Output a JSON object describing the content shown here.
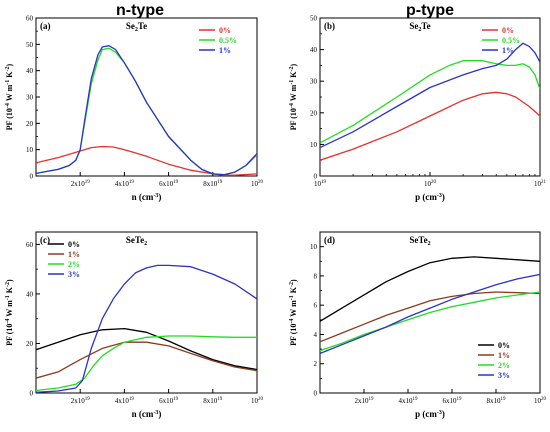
{
  "header": {
    "left": "n-type",
    "right": "p-type"
  },
  "colors": {
    "red": "#e8302a",
    "green": "#22dd22",
    "blue": "#2b34c4",
    "black": "#000000",
    "brown": "#8b3a1f"
  },
  "chart_data": [
    {
      "type": "line",
      "panel": "(a)",
      "title": "Se2Te",
      "title_main": "Se",
      "title_sub": "2",
      "title_tail": "Te",
      "xlabel": "n (cm-3)",
      "xlabel_main": "n (cm",
      "xlabel_sup": "-3",
      "xlabel_tail": ")",
      "ylabel": "PF (10-4 W m-1 K-2)",
      "ylim": [
        0,
        60
      ],
      "xlim": [
        0,
        1e+20
      ],
      "xscale": "linear",
      "xticks": [
        {
          "value": 2e+19,
          "label": "2x10",
          "exp": "19"
        },
        {
          "value": 4e+19,
          "label": "4x10",
          "exp": "19"
        },
        {
          "value": 6e+19,
          "label": "6x10",
          "exp": "19"
        },
        {
          "value": 8e+19,
          "label": "8x10",
          "exp": "19"
        },
        {
          "value": 1e+20,
          "label": "10",
          "exp": "20"
        }
      ],
      "yticks": [
        0,
        10,
        20,
        30,
        40,
        50,
        60
      ],
      "legend_position": "top-right",
      "series": [
        {
          "name": "0%",
          "color": "#e8302a",
          "x": [
            0,
            1e+19,
            2e+19,
            2.5e+19,
            3e+19,
            3.5e+19,
            4e+19,
            5e+19,
            6e+19,
            7e+19,
            8e+19,
            8.5e+19,
            9e+19,
            1e+20
          ],
          "y": [
            5,
            7,
            9.5,
            10.8,
            11.2,
            11,
            10,
            7.5,
            4.5,
            2.2,
            0.8,
            0.3,
            0.3,
            0.8
          ]
        },
        {
          "name": "0.5%",
          "color": "#22dd22",
          "x": [
            0,
            1e+19,
            1.5e+19,
            1.8e+19,
            2e+19,
            2.2e+19,
            2.5e+19,
            2.8e+19,
            3e+19,
            3.3e+19,
            3.6e+19,
            4e+19,
            4.5e+19,
            5e+19,
            6e+19,
            7e+19,
            7.5e+19,
            8e+19,
            8.5e+19,
            9e+19,
            9.5e+19,
            1e+20
          ],
          "y": [
            1,
            2.5,
            4,
            6,
            10,
            20,
            35,
            44,
            48,
            48.5,
            47,
            43,
            36,
            28,
            15,
            6,
            2.5,
            0.8,
            0.5,
            1.5,
            4,
            8
          ]
        },
        {
          "name": "1%",
          "color": "#2b34c4",
          "x": [
            0,
            1e+19,
            1.5e+19,
            1.8e+19,
            2e+19,
            2.2e+19,
            2.5e+19,
            2.8e+19,
            3e+19,
            3.3e+19,
            3.6e+19,
            4e+19,
            4.5e+19,
            5e+19,
            6e+19,
            7e+19,
            7.5e+19,
            8e+19,
            8.5e+19,
            9e+19,
            9.5e+19,
            1e+20
          ],
          "y": [
            1,
            2.5,
            4,
            6,
            10,
            21,
            37,
            46,
            49,
            49.5,
            48,
            43,
            36,
            28,
            15,
            6,
            2.5,
            0.8,
            0.5,
            1.5,
            4,
            8.5
          ]
        }
      ]
    },
    {
      "type": "line",
      "panel": "(b)",
      "title": "Se2Te",
      "title_main": "Se",
      "title_sub": "2",
      "title_tail": "Te",
      "xlabel": "p (cm-3)",
      "xlabel_main": "p (cm",
      "xlabel_sup": "-3",
      "xlabel_tail": ")",
      "ylabel": "PF (10-4 W m-1 K-2)",
      "ylim": [
        0,
        50
      ],
      "xlim": [
        1e+19,
        1e+21
      ],
      "xscale": "log",
      "xticks": [
        {
          "value": 1e+19,
          "label": "10",
          "exp": "19"
        },
        {
          "value": 1e+20,
          "label": "10",
          "exp": "20"
        },
        {
          "value": 1e+21,
          "label": "10",
          "exp": "21"
        }
      ],
      "yticks": [
        0,
        10,
        20,
        30,
        40,
        50
      ],
      "legend_position": "top-right",
      "series": [
        {
          "name": "0%",
          "color": "#e8302a",
          "x": [
            1e+19,
            2e+19,
            5e+19,
            1e+20,
            2e+20,
            3e+20,
            4e+20,
            5e+20,
            6e+20,
            8e+20,
            1e+21
          ],
          "y": [
            5,
            8.5,
            14,
            19,
            24,
            26,
            26.5,
            26,
            25,
            22,
            19
          ]
        },
        {
          "name": "0.5%",
          "color": "#22dd22",
          "x": [
            1e+19,
            2e+19,
            5e+19,
            1e+20,
            1.5e+20,
            2e+20,
            3e+20,
            4e+20,
            5e+20,
            6e+20,
            7e+20,
            8e+20,
            9e+20,
            1e+21
          ],
          "y": [
            10.5,
            16,
            25,
            32,
            35,
            36.5,
            36.5,
            35.5,
            35,
            35,
            35.5,
            34.5,
            32,
            27.5
          ]
        },
        {
          "name": "1%",
          "color": "#2b34c4",
          "x": [
            1e+19,
            2e+19,
            5e+19,
            1e+20,
            2e+20,
            3e+20,
            4e+20,
            5e+20,
            6e+20,
            7e+20,
            8e+20,
            9e+20,
            1e+21
          ],
          "y": [
            9,
            14,
            22,
            28,
            32,
            34,
            35,
            37,
            40,
            42,
            41,
            39,
            36
          ]
        }
      ]
    },
    {
      "type": "line",
      "panel": "(c)",
      "title": "SeTe2",
      "title_main": "SeTe",
      "title_sub": "2",
      "title_tail": "",
      "xlabel": "n (cm-3)",
      "xlabel_main": "n (cm",
      "xlabel_sup": "-3",
      "xlabel_tail": ")",
      "ylabel": "PF (10-4 W m-1 K-2)",
      "ylim": [
        0,
        65
      ],
      "xlim": [
        0,
        1e+20
      ],
      "xscale": "linear",
      "xticks": [
        {
          "value": 2e+19,
          "label": "2x10",
          "exp": "19"
        },
        {
          "value": 4e+19,
          "label": "4x10",
          "exp": "19"
        },
        {
          "value": 6e+19,
          "label": "6x10",
          "exp": "19"
        },
        {
          "value": 8e+19,
          "label": "8x10",
          "exp": "19"
        },
        {
          "value": 1e+20,
          "label": "10",
          "exp": "20"
        }
      ],
      "yticks": [
        0,
        20,
        40,
        60
      ],
      "legend_position": "top-left",
      "series": [
        {
          "name": "0%",
          "color": "#000000",
          "x": [
            0,
            1e+19,
            2e+19,
            3e+19,
            4e+19,
            5e+19,
            6e+19,
            7e+19,
            8e+19,
            9e+19,
            1e+20
          ],
          "y": [
            17.5,
            20.5,
            23.5,
            25.5,
            26,
            24.5,
            21,
            17,
            13.5,
            11,
            9.5
          ]
        },
        {
          "name": "1%",
          "color": "#8b3a1f",
          "x": [
            0,
            1e+19,
            2e+19,
            3e+19,
            4e+19,
            5e+19,
            6e+19,
            7e+19,
            8e+19,
            9e+19,
            1e+20
          ],
          "y": [
            6,
            8.5,
            13.5,
            18,
            20.5,
            20.5,
            19,
            16,
            13,
            10.5,
            9
          ]
        },
        {
          "name": "2%",
          "color": "#22dd22",
          "x": [
            0,
            1e+19,
            1.8e+19,
            2.2e+19,
            2.6e+19,
            3e+19,
            3.5e+19,
            4e+19,
            5e+19,
            6e+19,
            7e+19,
            8e+19,
            9e+19,
            1e+20
          ],
          "y": [
            1,
            2,
            3.5,
            6,
            11,
            15,
            18,
            20.5,
            22.5,
            23,
            23,
            22.7,
            22.5,
            22.5
          ]
        },
        {
          "name": "3%",
          "color": "#2b34c4",
          "x": [
            0,
            1e+19,
            1.8e+19,
            2.1e+19,
            2.5e+19,
            3e+19,
            3.5e+19,
            4e+19,
            4.5e+19,
            5e+19,
            5.5e+19,
            6e+19,
            7e+19,
            8e+19,
            9e+19,
            1e+20
          ],
          "y": [
            0.3,
            0.8,
            2,
            5,
            18,
            30,
            38,
            44,
            48.5,
            50.5,
            51.5,
            51.5,
            51,
            48,
            44,
            38
          ]
        }
      ]
    },
    {
      "type": "line",
      "panel": "(d)",
      "title": "SeTe2",
      "title_main": "SeTe",
      "title_sub": "2",
      "title_tail": "",
      "xlabel": "p (cm-3)",
      "xlabel_main": "p (cm",
      "xlabel_sup": "-3",
      "xlabel_tail": ")",
      "ylabel": "PF (10-4 W m-1 K-2)",
      "ylim": [
        0,
        11
      ],
      "xlim": [
        0,
        1e+20
      ],
      "xscale": "linear",
      "xticks": [
        {
          "value": 2e+19,
          "label": "2x10",
          "exp": "19"
        },
        {
          "value": 4e+19,
          "label": "4x10",
          "exp": "19"
        },
        {
          "value": 6e+19,
          "label": "6x10",
          "exp": "19"
        },
        {
          "value": 8e+19,
          "label": "8x10",
          "exp": "19"
        },
        {
          "value": 1e+20,
          "label": "10",
          "exp": "20"
        }
      ],
      "yticks": [
        0,
        2,
        4,
        6,
        8,
        10
      ],
      "legend_position": "bottom-right",
      "series": [
        {
          "name": "0%",
          "color": "#000000",
          "x": [
            0,
            1e+19,
            2e+19,
            3e+19,
            4e+19,
            5e+19,
            6e+19,
            7e+19,
            8e+19,
            9e+19,
            1e+20
          ],
          "y": [
            4.9,
            5.8,
            6.7,
            7.6,
            8.3,
            8.9,
            9.2,
            9.3,
            9.2,
            9.1,
            9.0
          ]
        },
        {
          "name": "1%",
          "color": "#8b3a1f",
          "x": [
            0,
            1e+19,
            2e+19,
            3e+19,
            4e+19,
            5e+19,
            6e+19,
            7e+19,
            8e+19,
            9e+19,
            1e+20
          ],
          "y": [
            3.5,
            4.1,
            4.7,
            5.3,
            5.8,
            6.3,
            6.6,
            6.8,
            6.9,
            6.85,
            6.8
          ]
        },
        {
          "name": "2%",
          "color": "#22dd22",
          "x": [
            0,
            1e+19,
            2e+19,
            3e+19,
            4e+19,
            5e+19,
            6e+19,
            7e+19,
            8e+19,
            9e+19,
            1e+20
          ],
          "y": [
            2.9,
            3.4,
            4.0,
            4.5,
            5.0,
            5.5,
            5.9,
            6.2,
            6.5,
            6.7,
            6.9
          ]
        },
        {
          "name": "3%",
          "color": "#2b34c4",
          "x": [
            0,
            1e+19,
            2e+19,
            3e+19,
            4e+19,
            5e+19,
            6e+19,
            7e+19,
            8e+19,
            9e+19,
            1e+20
          ],
          "y": [
            2.7,
            3.3,
            3.9,
            4.5,
            5.2,
            5.8,
            6.4,
            6.9,
            7.4,
            7.8,
            8.1
          ]
        }
      ]
    }
  ]
}
